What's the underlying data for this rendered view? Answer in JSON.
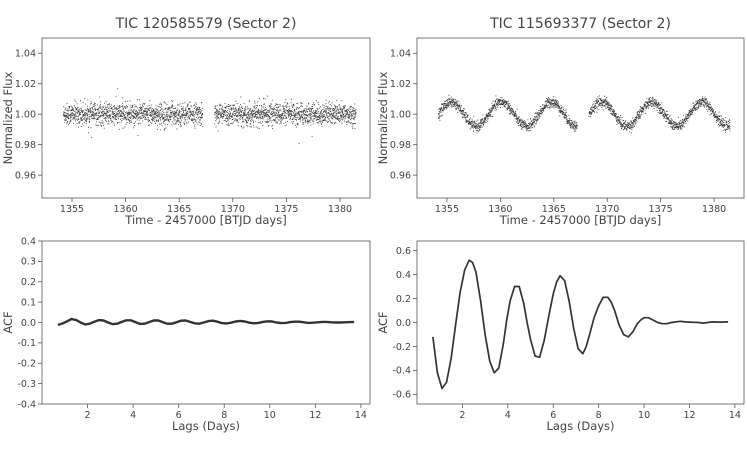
{
  "chart_data": [
    {
      "id": "p1",
      "type": "scatter",
      "title": "TIC 120585579 (Sector 2)",
      "xlabel": "Time - 2457000 [BTJD days]",
      "ylabel": "Normalized Flux",
      "xlim": [
        1352.2,
        1382.8
      ],
      "ylim": [
        0.945,
        1.05
      ],
      "xticks": [
        1355,
        1360,
        1365,
        1370,
        1375,
        1380
      ],
      "yticks": [
        0.96,
        0.98,
        1.0,
        1.02,
        1.04
      ],
      "yfmt": 2,
      "color": "#333333",
      "series": [
        {
          "segments": [
            [
              1354.2,
              1367.2
            ],
            [
              1368.3,
              1381.5
            ]
          ],
          "step": 0.01,
          "center": 1.0,
          "amplitude": 0.0,
          "period": 1.2,
          "scatter": 0.007,
          "outlier_fraction": 0.008,
          "outlier_spread": 0.015
        }
      ]
    },
    {
      "id": "p2",
      "type": "scatter",
      "title": "TIC 115693377 (Sector 2)",
      "xlabel": "Time - 2457000 [BTJD days]",
      "ylabel": "Normalized Flux",
      "xlim": [
        1352.2,
        1382.8
      ],
      "ylim": [
        0.945,
        1.05
      ],
      "xticks": [
        1355,
        1360,
        1365,
        1370,
        1375,
        1380
      ],
      "yticks": [
        0.96,
        0.98,
        1.0,
        1.02,
        1.04
      ],
      "yfmt": 2,
      "color": "#333333",
      "series": [
        {
          "segments": [
            [
              1354.2,
              1367.2
            ],
            [
              1368.3,
              1381.5
            ]
          ],
          "step": 0.012,
          "center": 1.0,
          "amplitude": 0.008,
          "period": 4.7,
          "phase_peak": 1360.1,
          "scatter": 0.0035,
          "outlier_fraction": 0.0,
          "outlier_spread": 0.0
        }
      ]
    },
    {
      "id": "p3",
      "type": "line",
      "title": "",
      "xlabel": "Lags (Days)",
      "ylabel": "ACF",
      "xlim": [
        0.0,
        14.4
      ],
      "ylim": [
        -0.4,
        0.4
      ],
      "xticks": [
        2,
        4,
        6,
        8,
        10,
        12,
        14
      ],
      "yticks": [
        -0.4,
        -0.3,
        -0.2,
        -0.1,
        0.0,
        0.1,
        0.2,
        0.3,
        0.4
      ],
      "yfmt": 1,
      "color": "#333333",
      "series": [
        {
          "x": [
            0.7,
            0.9,
            1.1,
            1.3,
            1.5,
            1.7,
            1.9,
            2.1,
            2.3,
            2.5,
            2.7,
            2.9,
            3.1,
            3.3,
            3.5,
            3.7,
            3.9,
            4.1,
            4.3,
            4.5,
            4.7,
            4.9,
            5.1,
            5.3,
            5.5,
            5.7,
            5.9,
            6.1,
            6.3,
            6.5,
            6.7,
            6.9,
            7.1,
            7.3,
            7.5,
            7.7,
            7.9,
            8.1,
            8.3,
            8.5,
            8.7,
            8.9,
            9.1,
            9.3,
            9.5,
            9.7,
            9.9,
            10.1,
            10.3,
            10.5,
            10.7,
            10.9,
            11.1,
            11.3,
            11.5,
            11.7,
            11.9,
            12.1,
            12.3,
            12.5,
            12.7,
            12.9,
            13.1,
            13.3,
            13.5,
            13.7
          ],
          "y": [
            -0.012,
            -0.005,
            0.006,
            0.017,
            0.012,
            0.0,
            -0.01,
            -0.006,
            0.004,
            0.012,
            0.01,
            0.0,
            -0.008,
            -0.006,
            0.003,
            0.011,
            0.011,
            0.002,
            -0.007,
            -0.006,
            0.002,
            0.01,
            0.01,
            0.002,
            -0.006,
            -0.006,
            0.001,
            0.009,
            0.01,
            0.003,
            -0.004,
            -0.006,
            0.0,
            0.007,
            0.009,
            0.004,
            -0.003,
            -0.005,
            -0.001,
            0.005,
            0.008,
            0.005,
            -0.001,
            -0.004,
            -0.002,
            0.003,
            0.006,
            0.005,
            0.0,
            -0.003,
            -0.002,
            0.002,
            0.004,
            0.004,
            0.001,
            -0.002,
            -0.001,
            0.001,
            0.003,
            0.003,
            0.001,
            0.0,
            0.0,
            0.001,
            0.002,
            0.002
          ]
        }
      ]
    },
    {
      "id": "p4",
      "type": "line",
      "title": "",
      "xlabel": "Lags (Days)",
      "ylabel": "ACF",
      "xlim": [
        0.0,
        14.4
      ],
      "ylim": [
        -0.68,
        0.68
      ],
      "xticks": [
        2,
        4,
        6,
        8,
        10,
        12,
        14
      ],
      "yticks": [
        -0.6,
        -0.4,
        -0.2,
        0.0,
        0.2,
        0.4,
        0.6
      ],
      "yfmt": 1,
      "color": "#333333",
      "series": [
        {
          "x": [
            0.7,
            0.9,
            1.1,
            1.3,
            1.5,
            1.7,
            1.9,
            2.1,
            2.3,
            2.45,
            2.6,
            2.8,
            3.0,
            3.2,
            3.4,
            3.6,
            3.8,
            3.95,
            4.1,
            4.3,
            4.5,
            4.7,
            4.85,
            5.0,
            5.2,
            5.4,
            5.6,
            5.8,
            6.0,
            6.15,
            6.3,
            6.5,
            6.7,
            6.9,
            7.1,
            7.3,
            7.45,
            7.6,
            7.8,
            8.0,
            8.2,
            8.4,
            8.55,
            8.7,
            8.9,
            9.1,
            9.3,
            9.5,
            9.7,
            9.85,
            10.0,
            10.2,
            10.4,
            10.6,
            10.8,
            11.0,
            11.2,
            11.4,
            11.6,
            11.8,
            12.0,
            12.2,
            12.4,
            12.6,
            12.8,
            13.0,
            13.2,
            13.4,
            13.7
          ],
          "y": [
            -0.12,
            -0.42,
            -0.55,
            -0.5,
            -0.3,
            -0.02,
            0.25,
            0.44,
            0.52,
            0.5,
            0.42,
            0.18,
            -0.1,
            -0.32,
            -0.42,
            -0.38,
            -0.18,
            0.02,
            0.18,
            0.3,
            0.3,
            0.16,
            0.0,
            -0.14,
            -0.28,
            -0.29,
            -0.15,
            0.05,
            0.24,
            0.34,
            0.39,
            0.35,
            0.18,
            -0.05,
            -0.22,
            -0.26,
            -0.2,
            -0.1,
            0.04,
            0.14,
            0.21,
            0.21,
            0.17,
            0.1,
            -0.02,
            -0.1,
            -0.12,
            -0.08,
            -0.01,
            0.02,
            0.04,
            0.04,
            0.02,
            0.0,
            -0.01,
            -0.01,
            0.0,
            0.005,
            0.01,
            0.005,
            0.003,
            0.002,
            0.0,
            -0.005,
            0.0,
            0.005,
            0.004,
            0.003,
            0.005
          ]
        }
      ]
    }
  ]
}
